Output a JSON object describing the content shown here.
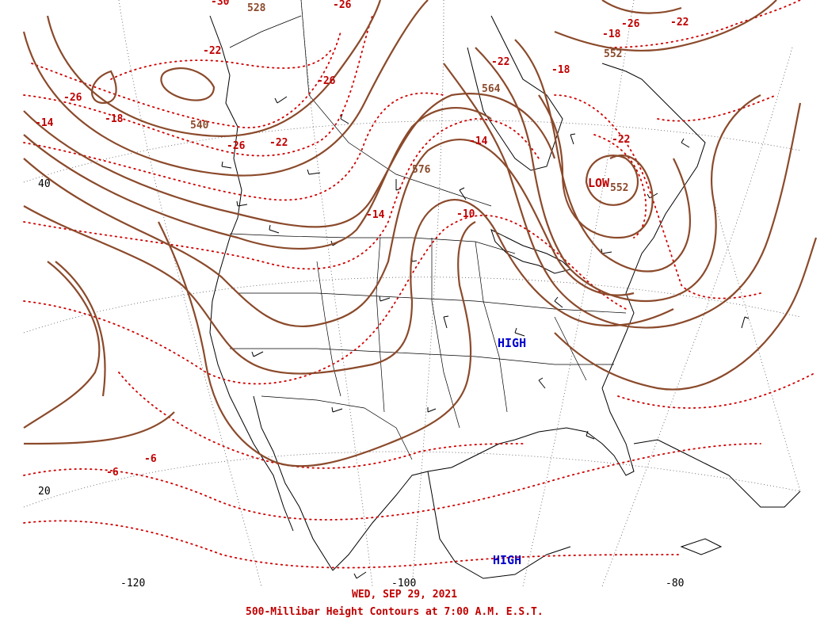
{
  "caption": {
    "date": "WED, SEP 29, 2021",
    "title": "500-Millibar Height Contours at 7:00 A.M. E.S.T."
  },
  "systems": {
    "low_1": "LOW",
    "high_1": "HIGH",
    "high_2": "HIGH"
  },
  "coordinates": {
    "lat_40": "40",
    "lat_20": "20",
    "lon_w120": "-120",
    "lon_w100": "-100",
    "lon_w80": "-80"
  },
  "height_labels": {
    "h528": "528",
    "h540": "540",
    "h576": "576",
    "h564": "564",
    "h552": "552",
    "h552_low": "552"
  },
  "temperature_labels": {
    "t_n30": "-30",
    "t_n26_a": "-26",
    "t_n26_b": "-26",
    "t_n26_c": "-26",
    "t_n26_d": "-26",
    "t_n26_e": "-26",
    "t_n22_a": "-22",
    "t_n22_b": "-22",
    "t_n22_c": "-22",
    "t_n22_d": "-22",
    "t_n22_e": "-22",
    "t_n18_a": "-18",
    "t_n18_b": "-18",
    "t_n18_c": "-18",
    "t_n14_a": "-14",
    "t_n14_b": "-14",
    "t_n14_c": "-14",
    "t_n10": "-10",
    "t_n6_a": "-6",
    "t_n6_b": "-6"
  },
  "colors": {
    "height_contour": "#8b4a2b",
    "temperature_isotherm": "#d00000",
    "high": "#0000cc",
    "low": "#c00000"
  }
}
